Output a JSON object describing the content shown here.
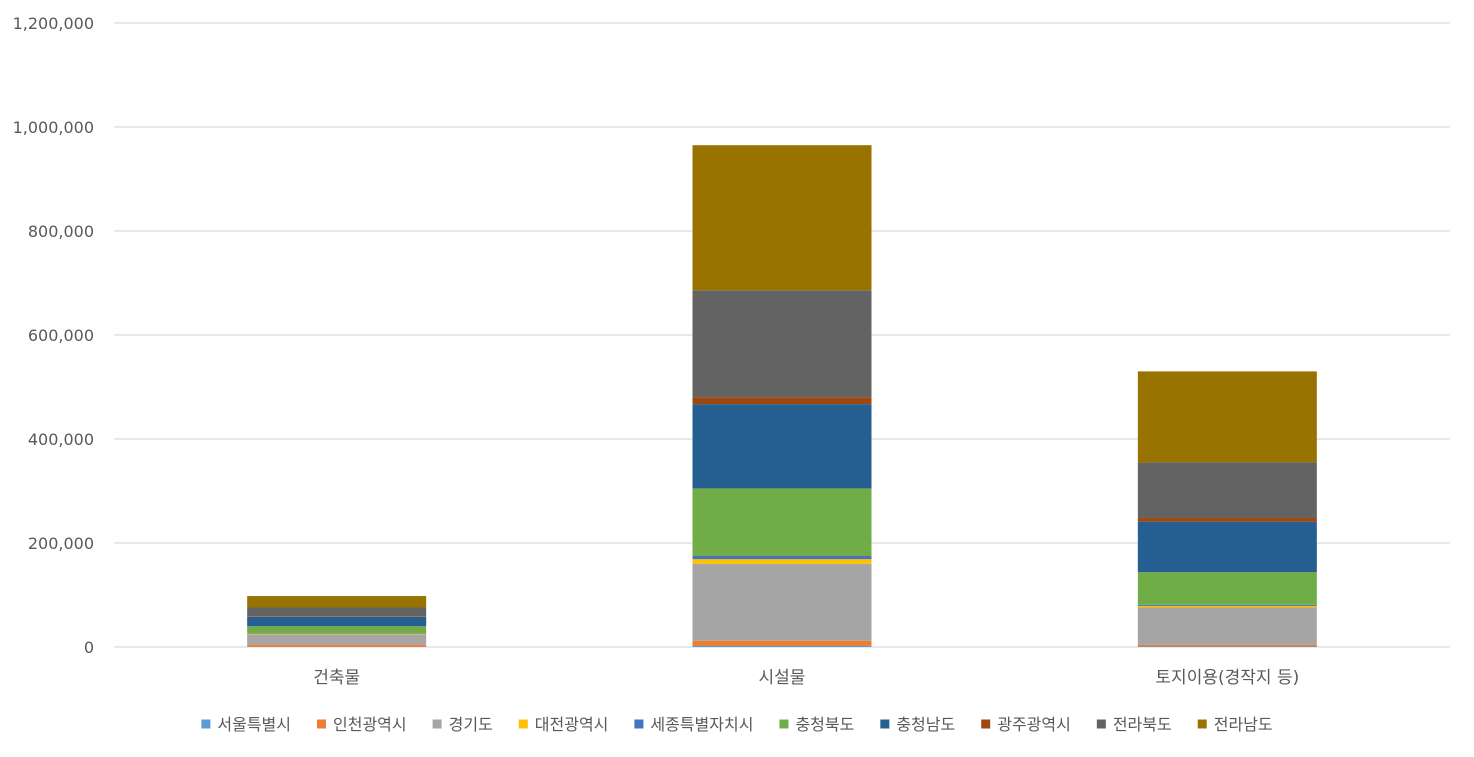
{
  "chart_data": {
    "type": "bar",
    "stacked": true,
    "title": "",
    "xlabel": "",
    "ylabel": "",
    "ylim": [
      0,
      1200000
    ],
    "yticks": [
      0,
      200000,
      400000,
      600000,
      800000,
      1000000,
      1200000
    ],
    "ytick_labels": [
      "0",
      "200,000",
      "400,000",
      "600,000",
      "800,000",
      "1,000,000",
      "1,200,000"
    ],
    "grid": true,
    "legend_position": "bottom",
    "categories": [
      "건축물",
      "시설물",
      "토지이용(경작지 등)"
    ],
    "series": [
      {
        "name": "서울특별시",
        "color": "#5B9BD5",
        "values": [
          500,
          2000,
          1000
        ]
      },
      {
        "name": "인천광역시",
        "color": "#ED7D31",
        "values": [
          4000,
          10000,
          3000
        ]
      },
      {
        "name": "경기도",
        "color": "#A5A5A5",
        "values": [
          20000,
          148000,
          72000
        ]
      },
      {
        "name": "대전광역시",
        "color": "#FFC000",
        "values": [
          1500,
          9000,
          3000
        ]
      },
      {
        "name": "세종특별자치시",
        "color": "#4472C4",
        "values": [
          1000,
          6000,
          2000
        ]
      },
      {
        "name": "충청북도",
        "color": "#70AD47",
        "values": [
          13000,
          130000,
          63000
        ]
      },
      {
        "name": "충청남도",
        "color": "#255E91",
        "values": [
          18000,
          162000,
          97000
        ]
      },
      {
        "name": "광주광역시",
        "color": "#9E480E",
        "values": [
          1000,
          13000,
          7000
        ]
      },
      {
        "name": "전라북도",
        "color": "#636363",
        "values": [
          17000,
          206000,
          107000
        ]
      },
      {
        "name": "전라남도",
        "color": "#997300",
        "values": [
          22000,
          279000,
          175000
        ]
      }
    ]
  }
}
